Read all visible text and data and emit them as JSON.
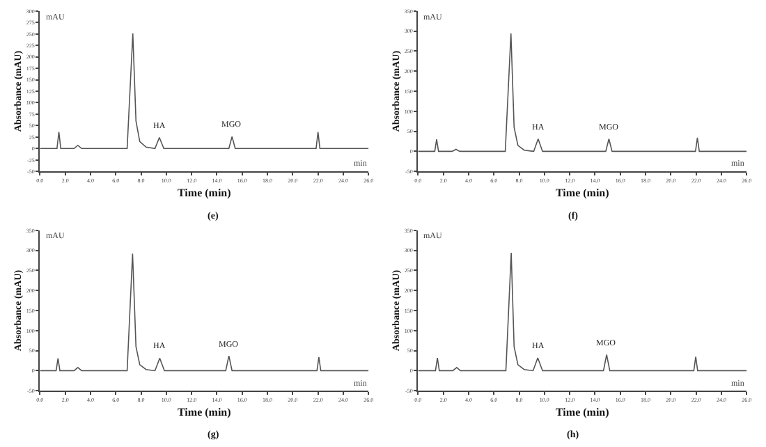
{
  "chart_data": [
    {
      "type": "line",
      "title": "(e)",
      "xlabel": "Time (min)",
      "ylabel": "Absorbance (mAU)",
      "xlim": [
        0,
        26
      ],
      "ylim": [
        -50,
        300
      ],
      "xticks": [
        {
          "value": 0,
          "label": "0.0"
        },
        {
          "value": 2,
          "label": "2.0"
        },
        {
          "value": 4,
          "label": "4.0"
        },
        {
          "value": 6,
          "label": "6.0"
        },
        {
          "value": 8,
          "label": "8.0"
        },
        {
          "value": 10,
          "label": "10.0"
        },
        {
          "value": 12,
          "label": "12.0"
        },
        {
          "value": 14,
          "label": "14.0"
        },
        {
          "value": 16,
          "label": "16.0"
        },
        {
          "value": 18,
          "label": "18.0"
        },
        {
          "value": 20,
          "label": "20.0"
        },
        {
          "value": 22,
          "label": "22.0"
        },
        {
          "value": 24,
          "label": "24.0"
        },
        {
          "value": 26,
          "label": "26.0"
        }
      ],
      "yticks": [
        -50,
        -25,
        0,
        25,
        50,
        75,
        100,
        125,
        150,
        175,
        200,
        225,
        250,
        275,
        300
      ],
      "series": [
        {
          "color": "#555555",
          "x": [
            0,
            1.35,
            1.5,
            1.65,
            2.7,
            3.0,
            3.3,
            6.9,
            7.35,
            7.6,
            7.9,
            8.4,
            9.1,
            9.45,
            9.8,
            14.95,
            15.2,
            15.45,
            21.85,
            22.0,
            22.15,
            26
          ],
          "values": [
            0,
            0,
            36,
            0,
            0,
            7,
            0,
            0,
            251,
            60,
            15,
            3,
            0,
            24,
            0,
            0,
            26,
            0,
            0,
            36,
            0,
            0
          ]
        }
      ],
      "annotations": [
        {
          "text": "HA",
          "x": 9.45,
          "y": 24
        },
        {
          "text": "MGO",
          "x": 15.2,
          "y": 26
        },
        "mAU",
        "min"
      ]
    },
    {
      "type": "line",
      "title": "(f)",
      "xlabel": "Time (min)",
      "ylabel": "Absorbance (mAU)",
      "xlim": [
        0,
        26
      ],
      "ylim": [
        -50,
        350
      ],
      "xticks": [
        {
          "value": 0,
          "label": "0.0"
        },
        {
          "value": 2,
          "label": "2.0"
        },
        {
          "value": 4,
          "label": "4.0"
        },
        {
          "value": 6,
          "label": "6.0"
        },
        {
          "value": 8,
          "label": "8.0"
        },
        {
          "value": 10,
          "label": "10.0"
        },
        {
          "value": 12,
          "label": "12.0"
        },
        {
          "value": 14,
          "label": "14.0"
        },
        {
          "value": 16,
          "label": "16.0"
        },
        {
          "value": 18,
          "label": "18.0"
        },
        {
          "value": 20,
          "label": "20.0"
        },
        {
          "value": 22,
          "label": "22.0"
        },
        {
          "value": 24,
          "label": "24.0"
        },
        {
          "value": 26,
          "label": "26.0"
        }
      ],
      "yticks": [
        -50,
        0,
        50,
        100,
        150,
        200,
        250,
        300,
        350
      ],
      "series": [
        {
          "color": "#555555",
          "x": [
            0,
            1.32,
            1.47,
            1.62,
            2.7,
            3.0,
            3.3,
            6.9,
            7.35,
            7.6,
            7.9,
            8.4,
            9.15,
            9.5,
            9.85,
            14.85,
            15.1,
            15.35,
            21.95,
            22.1,
            22.25,
            26
          ],
          "values": [
            0,
            0,
            30,
            0,
            0,
            5,
            0,
            0,
            294,
            60,
            15,
            3,
            0,
            31,
            0,
            0,
            31,
            0,
            0,
            34,
            0,
            0
          ]
        }
      ],
      "annotations": [
        {
          "text": "HA",
          "x": 9.5,
          "y": 31
        },
        {
          "text": "MGO",
          "x": 15.1,
          "y": 31
        },
        "mAU",
        "min"
      ]
    },
    {
      "type": "line",
      "title": "(g)",
      "xlabel": "Time (min)",
      "ylabel": "Absorbance (mAU)",
      "xlim": [
        0,
        26
      ],
      "ylim": [
        -50,
        350
      ],
      "xticks": [
        {
          "value": 0,
          "label": "0.0"
        },
        {
          "value": 2,
          "label": "2.0"
        },
        {
          "value": 4,
          "label": "4.0"
        },
        {
          "value": 6,
          "label": "6.0"
        },
        {
          "value": 8,
          "label": "8.0"
        },
        {
          "value": 10,
          "label": "10.0"
        },
        {
          "value": 12,
          "label": "12.0"
        },
        {
          "value": 14,
          "label": "14.0"
        },
        {
          "value": 16,
          "label": "16.0"
        },
        {
          "value": 18,
          "label": "18.0"
        },
        {
          "value": 20,
          "label": "20.0"
        },
        {
          "value": 22,
          "label": "22.0"
        },
        {
          "value": 24,
          "label": "24.0"
        },
        {
          "value": 26,
          "label": "26.0"
        }
      ],
      "yticks": [
        -50,
        0,
        50,
        100,
        150,
        200,
        250,
        300,
        350
      ],
      "series": [
        {
          "color": "#555555",
          "x": [
            0,
            1.28,
            1.43,
            1.58,
            2.7,
            3.0,
            3.3,
            6.9,
            7.33,
            7.6,
            7.9,
            8.4,
            9.1,
            9.48,
            9.85,
            14.7,
            14.95,
            15.2,
            21.92,
            22.07,
            22.22,
            26
          ],
          "values": [
            0,
            0,
            31,
            0,
            0,
            8,
            0,
            0,
            292,
            60,
            15,
            3,
            0,
            31,
            0,
            0,
            37,
            0,
            0,
            34,
            0,
            0
          ]
        }
      ],
      "annotations": [
        {
          "text": "HA",
          "x": 9.48,
          "y": 31
        },
        {
          "text": "MGO",
          "x": 14.95,
          "y": 37
        },
        "mAU",
        "min"
      ]
    },
    {
      "type": "line",
      "title": "(h)",
      "xlabel": "Time (min)",
      "ylabel": "Absorbance (mAU)",
      "xlim": [
        0,
        26
      ],
      "ylim": [
        -50,
        350
      ],
      "xticks": [
        {
          "value": 0,
          "label": "0.0"
        },
        {
          "value": 2,
          "label": "2.0"
        },
        {
          "value": 4,
          "label": "4.0"
        },
        {
          "value": 6,
          "label": "6.0"
        },
        {
          "value": 8,
          "label": "8.0"
        },
        {
          "value": 10,
          "label": "10.0"
        },
        {
          "value": 12,
          "label": "12.0"
        },
        {
          "value": 14,
          "label": "14.0"
        },
        {
          "value": 16,
          "label": "16.0"
        },
        {
          "value": 18,
          "label": "18.0"
        },
        {
          "value": 20,
          "label": "20.0"
        },
        {
          "value": 22,
          "label": "22.0"
        },
        {
          "value": 24,
          "label": "24.0"
        },
        {
          "value": 26,
          "label": "26.0"
        }
      ],
      "yticks": [
        -50,
        0,
        50,
        100,
        150,
        200,
        250,
        300,
        350
      ],
      "series": [
        {
          "color": "#555555",
          "x": [
            0,
            1.38,
            1.53,
            1.68,
            2.75,
            3.06,
            3.35,
            6.95,
            7.37,
            7.6,
            7.9,
            8.4,
            9.1,
            9.47,
            9.85,
            14.67,
            14.92,
            15.17,
            21.82,
            21.97,
            22.12,
            26
          ],
          "values": [
            0,
            0,
            32,
            0,
            0,
            8,
            0,
            0,
            294,
            60,
            15,
            3,
            0,
            32,
            0,
            0,
            40,
            0,
            0,
            35,
            0,
            0
          ]
        }
      ],
      "annotations": [
        {
          "text": "HA",
          "x": 9.47,
          "y": 32
        },
        {
          "text": "MGO",
          "x": 14.92,
          "y": 40
        },
        "mAU",
        "min"
      ]
    }
  ]
}
